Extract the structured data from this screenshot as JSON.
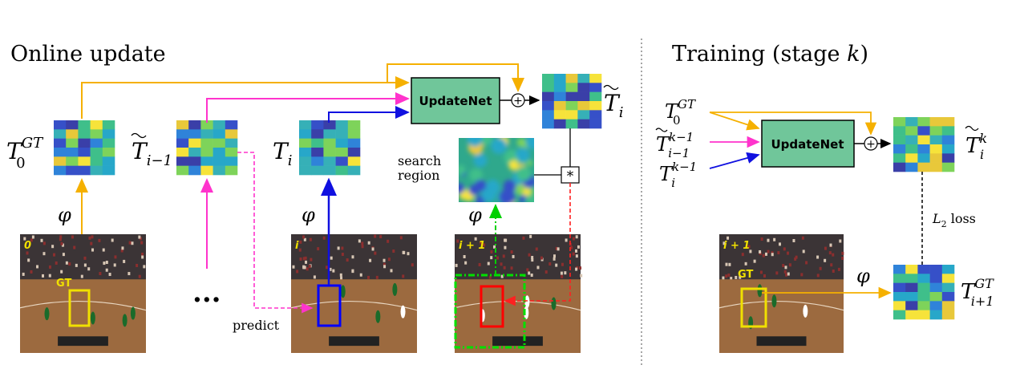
{
  "left_panel": {
    "title": "Online update",
    "update_block": "UpdateNet",
    "feature_labels": {
      "phi": "φ"
    },
    "search_region": {
      "line1": "search",
      "line2": "region"
    },
    "correlation_symbol": "*",
    "sum_symbol": "+",
    "ellipsis": "...",
    "predict": "predict",
    "frames": [
      {
        "id": "frame-0",
        "index_label": "0",
        "box_label": "GT",
        "box_color": "#f0e000"
      },
      {
        "id": "frame-i",
        "index_label": "i",
        "box_color": "#0000ff"
      },
      {
        "id": "frame-i+1",
        "index_label": "i + 1",
        "box_color": "#ff0000",
        "search_color": "#00e000"
      }
    ],
    "templates": {
      "t0_main": "T",
      "t0_sup": "GT",
      "t0_sub": "0",
      "tprev_main": "T",
      "tprev_sub": "i−1",
      "ti_main": "T",
      "ti_sub": "i",
      "tnew_main": "T",
      "tnew_sub": "i"
    }
  },
  "right_panel": {
    "title_prefix": "Training (stage ",
    "title_var": "k",
    "title_suffix": ")",
    "update_block": "UpdateNet",
    "loss_label": "L",
    "loss_sub": "2",
    "loss_suffix": " loss",
    "phi": "φ",
    "frame": {
      "index_label": "i + 1",
      "box_label": "GT"
    },
    "inputs": [
      {
        "main": "T",
        "sup": "GT",
        "sub": "0"
      },
      {
        "main": "T",
        "sup": "k−1",
        "sub": "i−1"
      },
      {
        "main": "T",
        "sup": "k−1",
        "sub": "i"
      }
    ],
    "output": {
      "main": "T",
      "sup": "k",
      "sub": "i"
    },
    "gt_target": {
      "main": "T",
      "sup": "GT",
      "sub": "i+1"
    }
  },
  "colors": {
    "orange": "#f5b000",
    "magenta": "#ff33cc",
    "blue": "#1010e0",
    "red": "#ff2020",
    "green": "#00e000",
    "updatenet_fill": "#70c69a",
    "court": "#8a5a36"
  }
}
